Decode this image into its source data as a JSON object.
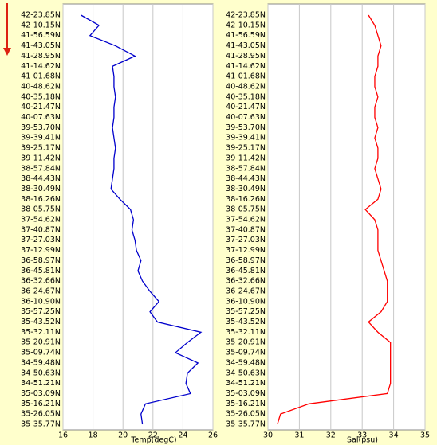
{
  "chart_data": [
    {
      "type": "line",
      "xlabel": "Temp(degC)",
      "categories": [
        "42-23.85N",
        "42-10.15N",
        "41-56.59N",
        "41-43.05N",
        "41-28.95N",
        "41-14.62N",
        "41-01.68N",
        "40-48.62N",
        "40-35.18N",
        "40-21.47N",
        "40-07.63N",
        "39-53.70N",
        "39-39.41N",
        "39-25.17N",
        "39-11.42N",
        "38-57.84N",
        "38-44.43N",
        "38-30.49N",
        "38-16.26N",
        "38-05.75N",
        "37-54.62N",
        "37-40.87N",
        "37-27.03N",
        "37-12.99N",
        "36-58.97N",
        "36-45.81N",
        "36-32.66N",
        "36-24.67N",
        "36-10.90N",
        "35-57.25N",
        "35-43.52N",
        "35-32.11N",
        "35-20.91N",
        "35-09.74N",
        "34-59.48N",
        "34-50.63N",
        "34-51.21N",
        "35-03.09N",
        "35-16.21N",
        "35-26.05N",
        "35-35.77N"
      ],
      "values": [
        17.2,
        18.4,
        17.8,
        19.5,
        20.8,
        19.3,
        19.4,
        19.4,
        19.5,
        19.4,
        19.4,
        19.3,
        19.4,
        19.5,
        19.4,
        19.4,
        19.3,
        19.2,
        19.8,
        20.5,
        20.7,
        20.6,
        20.8,
        20.9,
        21.2,
        21.0,
        21.3,
        21.8,
        22.4,
        21.8,
        22.3,
        25.2,
        24.3,
        23.5,
        25.0,
        24.3,
        24.2,
        24.5,
        21.5,
        21.2,
        21.3
      ],
      "color": "#0000cc",
      "xlim": [
        16,
        26
      ],
      "xticks": [
        16,
        18,
        20,
        22,
        24,
        26
      ],
      "grid": true
    },
    {
      "type": "line",
      "xlabel": "Sal(psu)",
      "categories": [
        "42-23.85N",
        "42-10.15N",
        "41-56.59N",
        "41-43.05N",
        "41-28.95N",
        "41-14.62N",
        "41-01.68N",
        "40-48.62N",
        "40-35.18N",
        "40-21.47N",
        "40-07.63N",
        "39-53.70N",
        "39-39.41N",
        "39-25.17N",
        "39-11.42N",
        "38-57.84N",
        "38-44.43N",
        "38-30.49N",
        "38-16.26N",
        "38-05.75N",
        "37-54.62N",
        "37-40.87N",
        "37-27.03N",
        "37-12.99N",
        "36-58.97N",
        "36-45.81N",
        "36-32.66N",
        "36-24.67N",
        "36-10.90N",
        "35-57.25N",
        "35-43.52N",
        "35-32.11N",
        "35-20.91N",
        "35-09.74N",
        "34-59.48N",
        "34-50.63N",
        "34-51.21N",
        "35-03.09N",
        "35-16.21N",
        "35-26.05N",
        "35-35.77N"
      ],
      "values": [
        33.2,
        33.4,
        33.5,
        33.6,
        33.5,
        33.5,
        33.4,
        33.4,
        33.5,
        33.4,
        33.4,
        33.5,
        33.4,
        33.5,
        33.5,
        33.4,
        33.5,
        33.6,
        33.5,
        33.1,
        33.4,
        33.5,
        33.5,
        33.5,
        33.6,
        33.7,
        33.8,
        33.8,
        33.8,
        33.6,
        33.2,
        33.5,
        33.9,
        33.9,
        33.9,
        33.9,
        33.9,
        33.8,
        31.3,
        30.4,
        30.3
      ],
      "color": "#ff0000",
      "xlim": [
        30,
        35
      ],
      "xticks": [
        30,
        31,
        32,
        33,
        34,
        35
      ],
      "grid": true
    }
  ]
}
